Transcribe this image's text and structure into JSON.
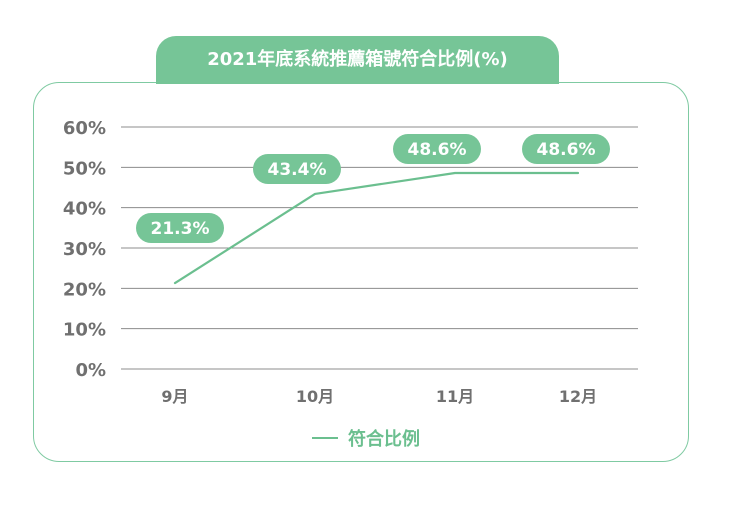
{
  "chart_data": {
    "type": "line",
    "title": "2021年底系統推薦箱號符合比例(%)",
    "categories": [
      "9月",
      "10月",
      "11月",
      "12月"
    ],
    "series": [
      {
        "name": "符合比例",
        "values": [
          21.3,
          43.4,
          48.6,
          48.6
        ],
        "labels": [
          "21.3%",
          "43.4%",
          "48.6%",
          "48.6%"
        ]
      }
    ],
    "yticks": [
      "0%",
      "10%",
      "20%",
      "30%",
      "40%",
      "50%",
      "60%"
    ],
    "ylim": [
      0,
      60
    ],
    "grid": true,
    "legend": "bottom",
    "colors": {
      "line": "#6bbf8f",
      "label_bg": "#76c597",
      "frame": "#7fcaa2",
      "grid": "#8c8c8c",
      "axis_text": "#707070"
    }
  }
}
